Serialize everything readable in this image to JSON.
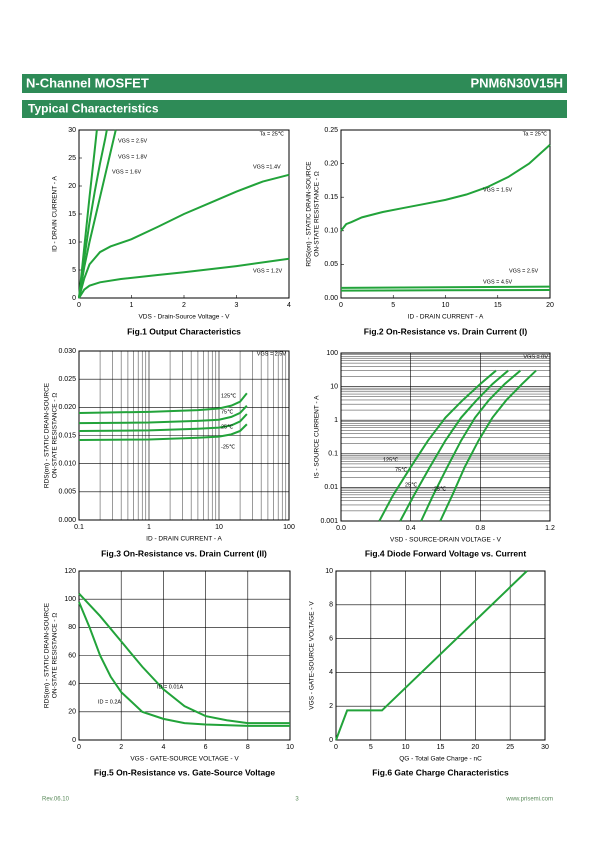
{
  "header": {
    "title": "N-Channel MOSFET",
    "part": "PNM6N30V15H"
  },
  "section": "Typical Characteristics",
  "footer": {
    "rev": "Rev.06.10",
    "page": "3",
    "url": "www.prisemi.com"
  },
  "chart_data": [
    {
      "type": "line",
      "title": "Fig.1 Output Characteristics",
      "xlabel": "VDS - Drain-Source Voltage - V",
      "ylabel": [
        "ID - DRAIN CURRENT - A"
      ],
      "xlim": [
        0,
        4
      ],
      "ylim": [
        0,
        30
      ],
      "xticks": [
        0,
        1,
        2,
        3,
        4
      ],
      "yticks": [
        0,
        5,
        10,
        15,
        20,
        25,
        30
      ],
      "grid": false,
      "annotations": [
        "Ta = 25℃"
      ],
      "series": [
        {
          "name": "VGS = 2.5V",
          "color": "#22a33a",
          "x": [
            0,
            0.1,
            0.2,
            0.3,
            0.34
          ],
          "values": [
            0,
            9,
            18,
            26.5,
            30
          ]
        },
        {
          "name": "VGS = 1.8V",
          "color": "#22a33a",
          "x": [
            0,
            0.1,
            0.2,
            0.3,
            0.4,
            0.5,
            0.53
          ],
          "values": [
            0,
            7,
            13.5,
            19,
            24,
            28.5,
            30
          ]
        },
        {
          "name": "VGS = 1.6V",
          "color": "#22a33a",
          "x": [
            0,
            0.1,
            0.2,
            0.3,
            0.4,
            0.5,
            0.6,
            0.7
          ],
          "values": [
            0,
            5.5,
            10,
            14,
            18,
            22,
            26,
            30
          ]
        },
        {
          "name": "VGS =1.4V",
          "color": "#22a33a",
          "x": [
            0,
            0.1,
            0.2,
            0.4,
            0.6,
            1,
            1.5,
            2,
            2.5,
            3,
            3.5,
            4
          ],
          "values": [
            0,
            3.5,
            6,
            8.2,
            9.2,
            10.5,
            12.7,
            15,
            17,
            19,
            20.8,
            22
          ]
        },
        {
          "name": "VGS = 1.2V",
          "color": "#22a33a",
          "x": [
            0,
            0.1,
            0.2,
            0.4,
            0.8,
            1.5,
            2,
            3,
            4
          ],
          "values": [
            0,
            1.5,
            2.2,
            2.8,
            3.4,
            4.1,
            4.6,
            5.7,
            7
          ]
        }
      ]
    },
    {
      "type": "line",
      "title": "Fig.2 On-Resistance vs. Drain Current (I)",
      "xlabel": "ID - DRAIN CURRENT - A",
      "ylabel": [
        "RDS(on) - STATIC DRAIN-SOURCE",
        "ON-STATE RESISTANCE - Ω"
      ],
      "xlim": [
        0,
        20
      ],
      "ylim": [
        0,
        0.25
      ],
      "xticks": [
        0,
        5,
        10,
        15,
        20
      ],
      "yticks": [
        {
          "value": 0,
          "label": "0.00"
        },
        0.05,
        {
          "value": 0.1,
          "label": "0.10"
        },
        0.15,
        {
          "value": 0.2,
          "label": "0.20"
        },
        0.25
      ],
      "grid": false,
      "annotations": [
        "Ta = 25℃"
      ],
      "series": [
        {
          "name": "VGS = 1.5V",
          "color": "#22a33a",
          "x": [
            0,
            0.5,
            1,
            2,
            4,
            6,
            8,
            10,
            12,
            14,
            16,
            18,
            20
          ],
          "values": [
            0.1,
            0.11,
            0.113,
            0.12,
            0.128,
            0.134,
            0.14,
            0.146,
            0.154,
            0.165,
            0.18,
            0.2,
            0.228
          ]
        },
        {
          "name": "VGS = 2.5V",
          "color": "#22a33a",
          "x": [
            0,
            10,
            20
          ],
          "values": [
            0.015,
            0.016,
            0.017
          ]
        },
        {
          "name": "VGS = 4.5V",
          "color": "#22a33a",
          "x": [
            0,
            10,
            20
          ],
          "values": [
            0.011,
            0.0115,
            0.012
          ]
        }
      ]
    },
    {
      "type": "line",
      "title": "Fig.3 On-Resistance vs. Drain Current (II)",
      "xlabel": "ID - DRAIN CURRENT - A",
      "ylabel": [
        "RDS(on) - STATIC DRAIN-SOURCE",
        "ON-STATE RESISTANCE - Ω"
      ],
      "xlim": [
        0.1,
        100
      ],
      "ylim": [
        0,
        0.03
      ],
      "xticks": [
        0.1,
        1,
        10,
        100
      ],
      "xlog": true,
      "yticks": [
        {
          "value": 0,
          "label": "0.000"
        },
        0.005,
        {
          "value": 0.01,
          "label": "0.010"
        },
        0.015,
        {
          "value": 0.02,
          "label": "0.020"
        },
        0.025,
        {
          "value": 0.03,
          "label": "0.030"
        }
      ],
      "grid": true,
      "annotations": [
        "VGS = 2.5V"
      ],
      "series": [
        {
          "name": "125℃",
          "color": "#22a33a",
          "x": [
            0.1,
            1,
            5,
            10,
            15,
            20,
            25
          ],
          "values": [
            0.019,
            0.0192,
            0.0195,
            0.0198,
            0.0203,
            0.021,
            0.0225
          ]
        },
        {
          "name": "75℃",
          "color": "#22a33a",
          "x": [
            0.1,
            1,
            5,
            10,
            15,
            20,
            25
          ],
          "values": [
            0.0172,
            0.0173,
            0.0176,
            0.0178,
            0.0183,
            0.019,
            0.0203
          ]
        },
        {
          "name": "25℃",
          "color": "#22a33a",
          "x": [
            0.1,
            1,
            5,
            10,
            15,
            20,
            25
          ],
          "values": [
            0.0158,
            0.0159,
            0.0162,
            0.0164,
            0.0168,
            0.0175,
            0.0188
          ]
        },
        {
          "name": "-25℃",
          "color": "#22a33a",
          "x": [
            0.1,
            1,
            5,
            10,
            15,
            20,
            25
          ],
          "values": [
            0.0142,
            0.0143,
            0.0146,
            0.0148,
            0.0152,
            0.0158,
            0.017
          ]
        }
      ]
    },
    {
      "type": "line",
      "title": "Fig.4 Diode Forward Voltage vs. Current",
      "xlabel": "VSD - SOURCE-DRAIN VOLTAGE - V",
      "ylabel": [
        "IS - SOURCE CURRENT - A"
      ],
      "xlim": [
        0,
        1.2
      ],
      "ylim": [
        0.001,
        100
      ],
      "ylog": true,
      "xticks": [
        {
          "value": 0,
          "label": "0.0"
        },
        0.4,
        0.8,
        1.2
      ],
      "yticks": [
        0.001,
        0.01,
        0.1,
        1,
        10,
        100
      ],
      "grid": true,
      "annotations": [
        "VGS = 0V"
      ],
      "series": [
        {
          "name": "125℃",
          "color": "#22a33a",
          "x": [
            0.22,
            0.3,
            0.4,
            0.5,
            0.6,
            0.7,
            0.8,
            0.89
          ],
          "values": [
            0.001,
            0.006,
            0.04,
            0.25,
            1.2,
            4,
            12,
            30
          ]
        },
        {
          "name": "75℃",
          "color": "#22a33a",
          "x": [
            0.34,
            0.42,
            0.51,
            0.6,
            0.69,
            0.78,
            0.87,
            0.96
          ],
          "values": [
            0.001,
            0.006,
            0.04,
            0.25,
            1.2,
            4,
            12,
            30
          ]
        },
        {
          "name": "25℃",
          "color": "#22a33a",
          "x": [
            0.46,
            0.53,
            0.61,
            0.69,
            0.77,
            0.85,
            0.94,
            1.03
          ],
          "values": [
            0.001,
            0.006,
            0.04,
            0.25,
            1.2,
            4,
            12,
            30
          ]
        },
        {
          "name": "-25℃",
          "color": "#22a33a",
          "x": [
            0.57,
            0.64,
            0.71,
            0.79,
            0.87,
            0.95,
            1.04,
            1.12
          ],
          "values": [
            0.001,
            0.006,
            0.04,
            0.25,
            1.2,
            4,
            12,
            30
          ]
        }
      ]
    },
    {
      "type": "line",
      "title": "Fig.5 On-Resistance vs. Gate-Source Voltage",
      "xlabel": "VGS - GATE-SOURCE VOLTAGE - V",
      "ylabel": [
        "RDS(on) - STATIC DRAIN-SOURCE",
        "ON-STATE RESISTANCE - Ω"
      ],
      "xlim": [
        0,
        10
      ],
      "ylim": [
        0,
        120
      ],
      "xticks": [
        0,
        2,
        4,
        6,
        8,
        10
      ],
      "yticks": [
        0,
        20,
        40,
        60,
        80,
        100,
        120
      ],
      "grid": true,
      "annotations": [],
      "series": [
        {
          "name": "ID = 0.01A",
          "color": "#22a33a",
          "x": [
            0,
            1,
            2,
            3,
            4,
            5,
            6,
            7,
            8,
            9,
            10
          ],
          "values": [
            104,
            88,
            70,
            52,
            36,
            24,
            17,
            14,
            12,
            12,
            12
          ]
        },
        {
          "name": "ID = 0.2A",
          "color": "#22a33a",
          "x": [
            0,
            0.5,
            1,
            1.5,
            2,
            3,
            4,
            5,
            6,
            8,
            10
          ],
          "values": [
            98,
            80,
            60,
            45,
            34,
            20,
            15,
            12,
            11,
            10,
            10
          ]
        }
      ]
    },
    {
      "type": "line",
      "title": "Fig.6 Gate Charge Characteristics",
      "xlabel": "QG - Total Gate Charge - nC",
      "ylabel": [
        "VGS - GATE-SOURCE VOLTAGE - V"
      ],
      "xlim": [
        0,
        30
      ],
      "ylim": [
        0,
        10
      ],
      "xticks": [
        0,
        5,
        10,
        15,
        20,
        25,
        30
      ],
      "yticks": [
        0,
        2,
        4,
        6,
        8,
        10
      ],
      "grid": true,
      "annotations": [],
      "series": [
        {
          "color": "#22a33a",
          "x": [
            0,
            1.6,
            6.6,
            27.4
          ],
          "values": [
            0,
            1.75,
            1.75,
            10
          ]
        }
      ]
    }
  ]
}
